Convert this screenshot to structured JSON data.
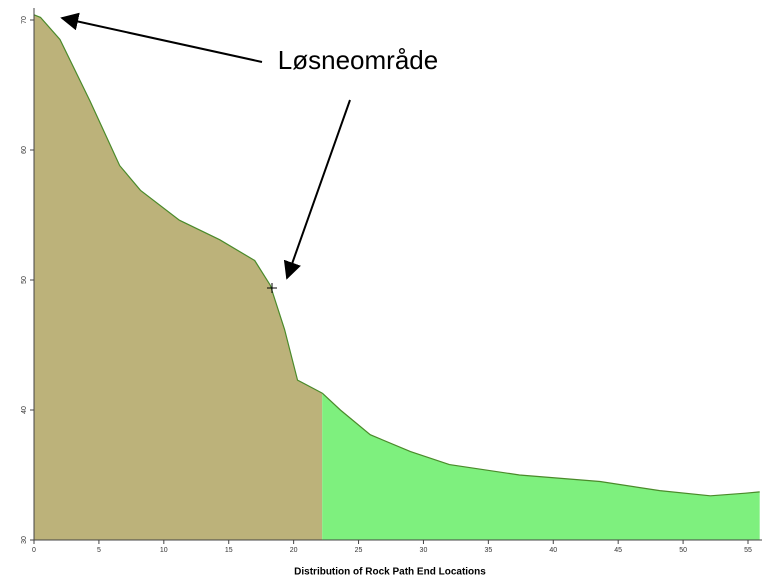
{
  "chart_data": {
    "type": "area",
    "x_label": "Distribution of Rock Path End Locations",
    "annotation": "Løsneområde",
    "xlim": [
      0,
      55
    ],
    "xticks": [
      0,
      5,
      10,
      15,
      20,
      25,
      30,
      35,
      40,
      45,
      50,
      55
    ],
    "ylim": [
      30,
      70
    ],
    "yticks": [
      30,
      40,
      50,
      60,
      70
    ],
    "series": [
      {
        "color": "#bcb27a",
        "x": [
          0,
          0.5,
          2,
          4.3,
          6.6,
          8.2,
          11.2,
          14.3,
          17,
          18.2,
          19.3,
          20.3,
          22.2
        ],
        "values": [
          70.4,
          70.2,
          68.5,
          63.8,
          58.8,
          56.9,
          54.6,
          53.1,
          51.5,
          49.6,
          46.2,
          42.3,
          41.3
        ]
      },
      {
        "color": "#7ef07e",
        "x": [
          22.2,
          23.6,
          25.9,
          29,
          32,
          37.4,
          43.6,
          48.2,
          52.1,
          54.8,
          55.9
        ],
        "values": [
          41.3,
          40,
          38.1,
          36.8,
          35.8,
          35,
          34.5,
          33.8,
          33.4,
          33.6,
          33.7
        ]
      }
    ]
  }
}
